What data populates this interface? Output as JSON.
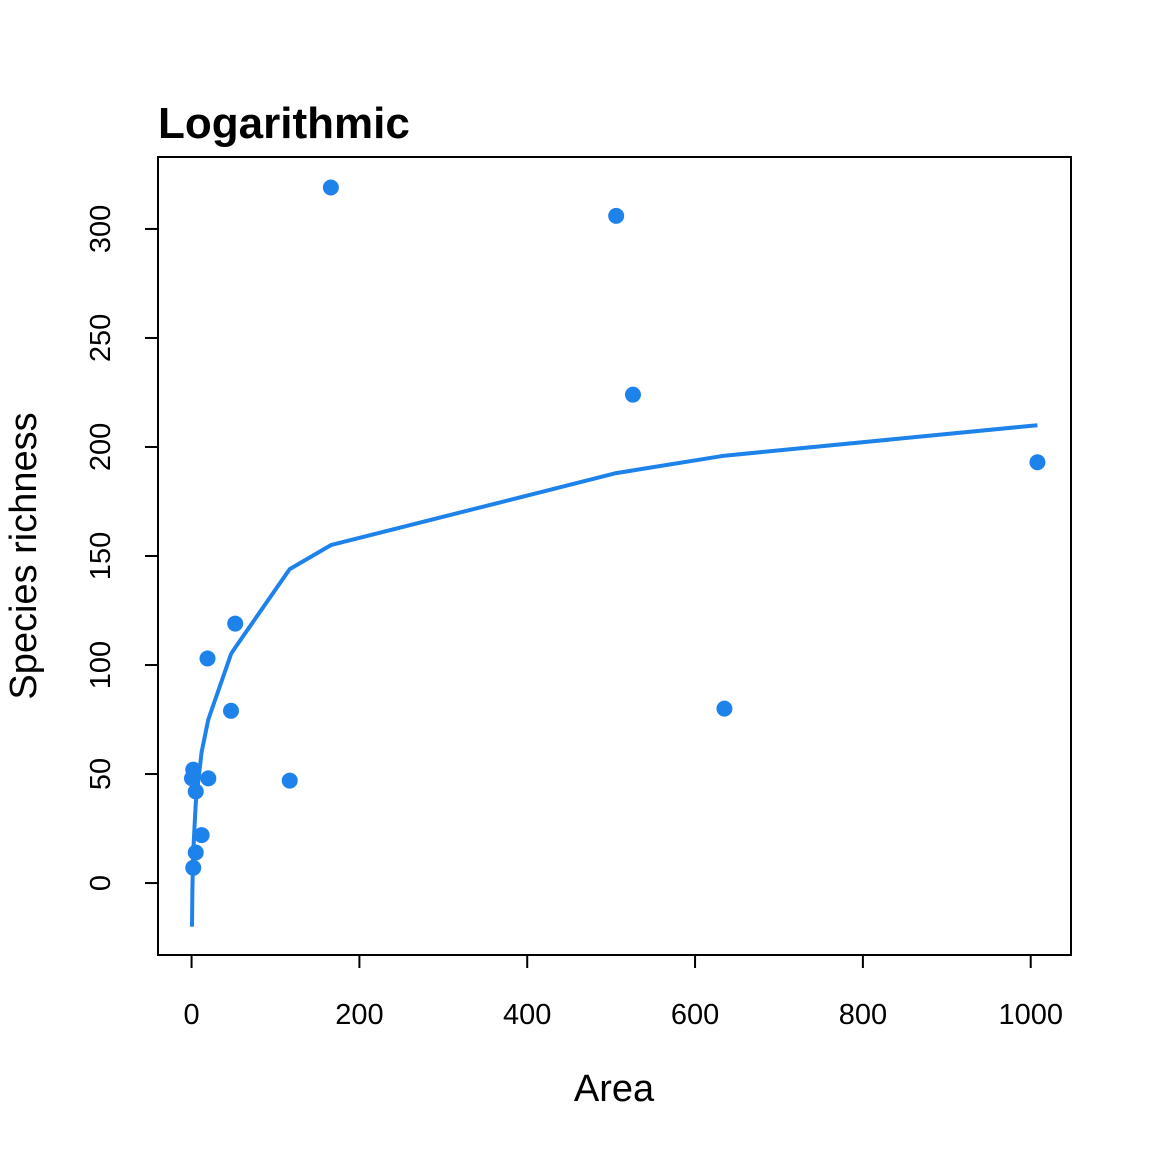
{
  "chart_data": {
    "type": "scatter",
    "title": "Logarithmic",
    "xlabel": "Area",
    "ylabel": "Species richness",
    "xlim": [
      -40,
      1048
    ],
    "ylim": [
      -33,
      333
    ],
    "x_ticks": [
      0,
      200,
      400,
      600,
      800,
      1000
    ],
    "y_ticks": [
      0,
      50,
      100,
      150,
      200,
      250,
      300
    ],
    "grid": false,
    "colors": {
      "points": "#1e82eb",
      "line": "#1e82eb"
    },
    "points": [
      {
        "x": 0.5,
        "y": 48
      },
      {
        "x": 2,
        "y": 52
      },
      {
        "x": 2,
        "y": 7
      },
      {
        "x": 5,
        "y": 42
      },
      {
        "x": 5,
        "y": 14
      },
      {
        "x": 12,
        "y": 22
      },
      {
        "x": 19,
        "y": 103
      },
      {
        "x": 20,
        "y": 48
      },
      {
        "x": 47,
        "y": 79
      },
      {
        "x": 52,
        "y": 119
      },
      {
        "x": 117,
        "y": 47
      },
      {
        "x": 166,
        "y": 319
      },
      {
        "x": 506,
        "y": 306
      },
      {
        "x": 526,
        "y": 224
      },
      {
        "x": 635,
        "y": 80
      },
      {
        "x": 1008,
        "y": 193
      }
    ],
    "fit_line": {
      "x": [
        0.5,
        1,
        2,
        5,
        12,
        20,
        47,
        52,
        117,
        166,
        506,
        635,
        1008
      ],
      "y": [
        -20,
        -3,
        14,
        37,
        60,
        75,
        105,
        108,
        144,
        155,
        188,
        196,
        210
      ]
    }
  }
}
